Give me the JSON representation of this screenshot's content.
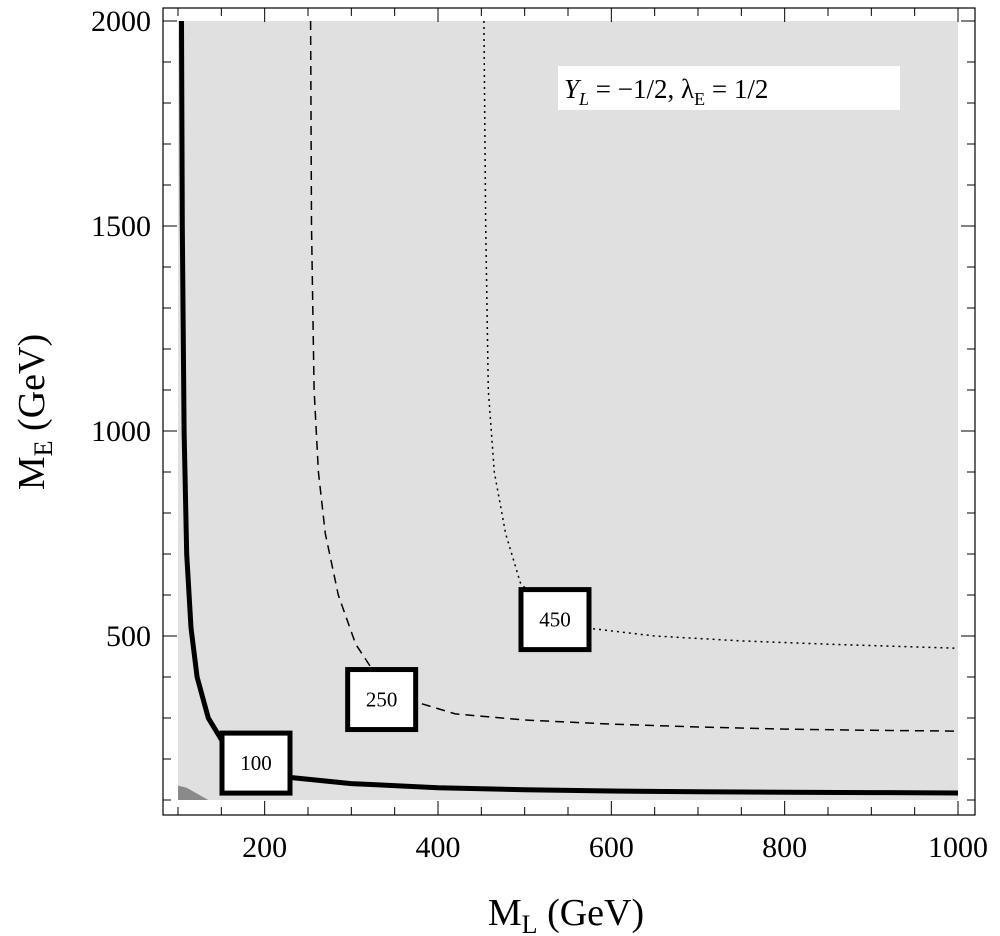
{
  "chart_data": {
    "type": "contour",
    "xlabel": {
      "main": "M",
      "sub": "L",
      "unit": " (GeV)"
    },
    "ylabel": {
      "main": "M",
      "sub": "E",
      "unit": " (GeV)"
    },
    "xlim": [
      100,
      1000
    ],
    "ylim": [
      100,
      2000
    ],
    "x_ticks": [
      200,
      400,
      600,
      800,
      1000
    ],
    "y_ticks": [
      500,
      1000,
      1500,
      2000
    ],
    "background_fill": "#e0e0e0",
    "annotation": {
      "y_main": "Y",
      "y_sub": "L",
      "y_value": " = −1/2, ",
      "lambda_main": "λ",
      "lambda_sub": "E",
      "lambda_value": " = 1/2"
    },
    "contours": [
      {
        "level": "100",
        "style": "solid",
        "label_at": [
          190,
          190
        ],
        "points": [
          [
            104,
            2000
          ],
          [
            105,
            1500
          ],
          [
            107,
            1000
          ],
          [
            110,
            700
          ],
          [
            115,
            520
          ],
          [
            122,
            400
          ],
          [
            135,
            300
          ],
          [
            155,
            230
          ],
          [
            185,
            180
          ],
          [
            230,
            155
          ],
          [
            300,
            140
          ],
          [
            400,
            130
          ],
          [
            500,
            125
          ],
          [
            600,
            122
          ],
          [
            700,
            120
          ],
          [
            800,
            119
          ],
          [
            900,
            118
          ],
          [
            1000,
            117
          ]
        ]
      },
      {
        "level": "250",
        "style": "dashed",
        "label_at": [
          335,
          345
        ],
        "points": [
          [
            253,
            2000
          ],
          [
            254,
            1500
          ],
          [
            257,
            1100
          ],
          [
            262,
            900
          ],
          [
            270,
            750
          ],
          [
            285,
            600
          ],
          [
            305,
            480
          ],
          [
            330,
            400
          ],
          [
            365,
            345
          ],
          [
            420,
            310
          ],
          [
            500,
            295
          ],
          [
            600,
            285
          ],
          [
            700,
            278
          ],
          [
            800,
            273
          ],
          [
            900,
            270
          ],
          [
            1000,
            268
          ]
        ]
      },
      {
        "level": "450",
        "style": "dotted",
        "label_at": [
          535,
          540
        ],
        "points": [
          [
            453,
            2000
          ],
          [
            455,
            1500
          ],
          [
            458,
            1100
          ],
          [
            465,
            900
          ],
          [
            478,
            750
          ],
          [
            495,
            630
          ],
          [
            525,
            560
          ],
          [
            570,
            520
          ],
          [
            650,
            500
          ],
          [
            750,
            488
          ],
          [
            850,
            480
          ],
          [
            1000,
            470
          ]
        ]
      }
    ],
    "shaded_corner": [
      [
        100,
        100
      ],
      [
        135,
        100
      ],
      [
        110,
        130
      ],
      [
        100,
        135
      ]
    ]
  }
}
